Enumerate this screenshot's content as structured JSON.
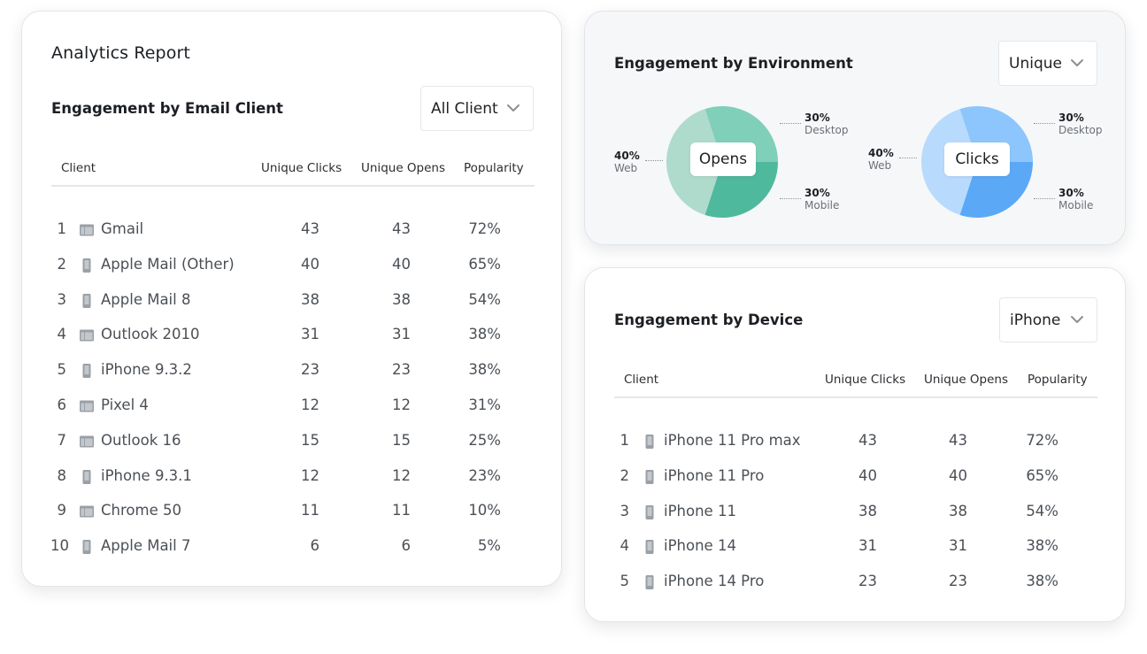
{
  "colors": {
    "opens_light": "#aedbcc",
    "opens_mid": "#7fcfb9",
    "opens_dark": "#4fb99e",
    "clicks_light": "#b8dbfd",
    "clicks_mid": "#8cc6fc",
    "clicks_dark": "#5ba9f6",
    "icon_gray": "#9aa0a6"
  },
  "email_card": {
    "report_title": "Analytics Report",
    "section_title": "Engagement by Email Client",
    "dropdown": {
      "value": "All Client",
      "icon": "chevron-down-icon"
    },
    "columns": [
      "Client",
      "Unique Clicks",
      "Unique Opens",
      "Popularity"
    ],
    "rows": [
      {
        "num": "1",
        "icon": "desktop",
        "name": "Gmail",
        "clicks": "43",
        "opens": "43",
        "popularity": "72%"
      },
      {
        "num": "2",
        "icon": "mobile",
        "name": "Apple Mail (Other)",
        "clicks": "40",
        "opens": "40",
        "popularity": "65%"
      },
      {
        "num": "3",
        "icon": "mobile",
        "name": "Apple Mail 8",
        "clicks": "38",
        "opens": "38",
        "popularity": "54%"
      },
      {
        "num": "4",
        "icon": "desktop",
        "name": "Outlook 2010",
        "clicks": "31",
        "opens": "31",
        "popularity": "38%"
      },
      {
        "num": "5",
        "icon": "mobile",
        "name": "iPhone 9.3.2",
        "clicks": "23",
        "opens": "23",
        "popularity": "38%"
      },
      {
        "num": "6",
        "icon": "desktop",
        "name": "Pixel 4",
        "clicks": "12",
        "opens": "12",
        "popularity": "31%"
      },
      {
        "num": "7",
        "icon": "desktop",
        "name": "Outlook 16",
        "clicks": "15",
        "opens": "15",
        "popularity": "25%"
      },
      {
        "num": "8",
        "icon": "mobile",
        "name": "iPhone 9.3.1",
        "clicks": "12",
        "opens": "12",
        "popularity": "23%"
      },
      {
        "num": "9",
        "icon": "desktop",
        "name": "Chrome 50",
        "clicks": "11",
        "opens": "11",
        "popularity": "10%"
      },
      {
        "num": "10",
        "icon": "mobile",
        "name": "Apple Mail 7",
        "clicks": "6",
        "opens": "6",
        "popularity": "5%"
      }
    ]
  },
  "environment_card": {
    "section_title": "Engagement by Environment",
    "dropdown": {
      "value": "Unique",
      "icon": "chevron-down-icon"
    },
    "pies": [
      {
        "center_label": "Opens",
        "slices": [
          {
            "label": "Desktop",
            "percent": "30%",
            "value": 30
          },
          {
            "label": "Mobile",
            "percent": "30%",
            "value": 30
          },
          {
            "label": "Web",
            "percent": "40%",
            "value": 40
          }
        ]
      },
      {
        "center_label": "Clicks",
        "slices": [
          {
            "label": "Desktop",
            "percent": "30%",
            "value": 30
          },
          {
            "label": "Mobile",
            "percent": "30%",
            "value": 30
          },
          {
            "label": "Web",
            "percent": "40%",
            "value": 40
          }
        ]
      }
    ]
  },
  "device_card": {
    "section_title": "Engagement by Device",
    "dropdown": {
      "value": "iPhone",
      "icon": "chevron-down-icon"
    },
    "columns": [
      "Client",
      "Unique Clicks",
      "Unique Opens",
      "Popularity"
    ],
    "rows": [
      {
        "num": "1",
        "icon": "mobile",
        "name": "iPhone 11 Pro max",
        "clicks": "43",
        "opens": "43",
        "popularity": "72%"
      },
      {
        "num": "2",
        "icon": "mobile",
        "name": "iPhone 11 Pro",
        "clicks": "40",
        "opens": "40",
        "popularity": "65%"
      },
      {
        "num": "3",
        "icon": "mobile",
        "name": "iPhone 11",
        "clicks": "38",
        "opens": "38",
        "popularity": "54%"
      },
      {
        "num": "4",
        "icon": "mobile",
        "name": "iPhone 14",
        "clicks": "31",
        "opens": "31",
        "popularity": "38%"
      },
      {
        "num": "5",
        "icon": "mobile",
        "name": "iPhone 14 Pro",
        "clicks": "23",
        "opens": "23",
        "popularity": "38%"
      }
    ]
  }
}
